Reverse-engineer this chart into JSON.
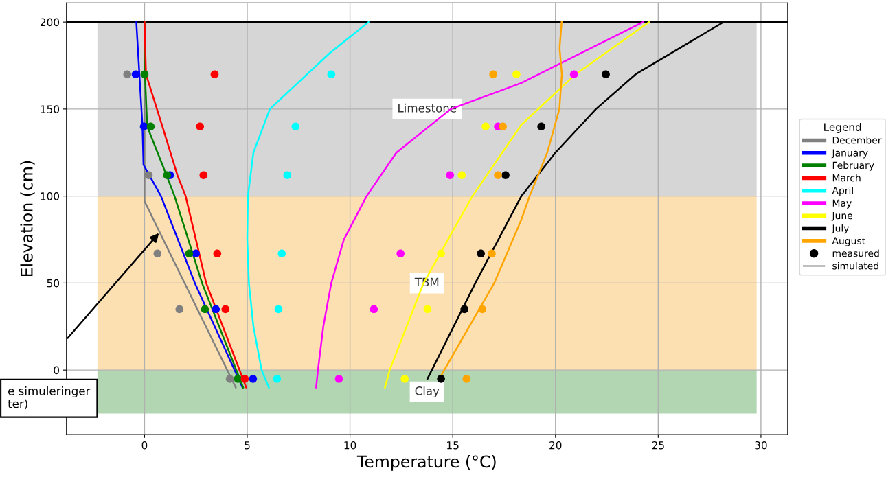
{
  "chart_data": {
    "type": "line",
    "xlabel": "Temperature (°C)",
    "ylabel": "Elevation (cm)",
    "legend_title": "Legend",
    "legend": "right",
    "grid": true,
    "xlim": [
      -3.8,
      31.3
    ],
    "ylim": [
      -37,
      211
    ],
    "xticks": [
      0,
      5,
      10,
      15,
      20,
      25,
      30
    ],
    "yticks": [
      0,
      50,
      100,
      150,
      200
    ],
    "bands": [
      {
        "axis": "y",
        "from": 100,
        "to": 200,
        "label": "Limestone",
        "color": "#d6d6d6"
      },
      {
        "axis": "y",
        "from": 0,
        "to": 100,
        "label": "TBM",
        "color": "#fde0b2"
      },
      {
        "axis": "y",
        "from": -25,
        "to": 0,
        "label": "Clay",
        "color": "#b1d6b1"
      }
    ],
    "ref_lines": [
      {
        "axis": "y",
        "value": 200,
        "color": "#000000"
      }
    ],
    "annotations": [
      "e simuleringer\nter)"
    ],
    "series": [
      {
        "name": "December",
        "type": "line",
        "color": "#808080",
        "x": [
          4.44,
          0,
          0,
          0
        ],
        "values": [
          -10,
          97,
          116,
          200
        ]
      },
      {
        "name": "January",
        "type": "line",
        "color": "#0000ff",
        "x": [
          4.77,
          2.45,
          0.8,
          -0.05,
          -0.1,
          -0.4
        ],
        "values": [
          -10,
          50,
          100,
          118,
          140,
          200
        ]
      },
      {
        "name": "February",
        "type": "line",
        "color": "#008000",
        "x": [
          4.8,
          2.8,
          1.46,
          1.07,
          0.13,
          0.02,
          0
        ],
        "values": [
          -10,
          50,
          100,
          112,
          140,
          170,
          200
        ]
      },
      {
        "name": "March",
        "type": "line",
        "color": "#ff0000",
        "x": [
          4.95,
          3.0,
          2.0,
          1.6,
          0.87,
          0.07,
          0
        ],
        "values": [
          -10,
          50,
          100,
          112,
          140,
          170,
          200
        ]
      },
      {
        "name": "April",
        "type": "line",
        "color": "#00ffff",
        "x": [
          6.05,
          5.7,
          5.3,
          5.08,
          5.0,
          5.03,
          5.3,
          6.1,
          7.0,
          9.0,
          10.9
        ],
        "values": [
          -10,
          0,
          25,
          50,
          75,
          100,
          125,
          150,
          160,
          182,
          200
        ]
      },
      {
        "name": "May",
        "type": "line",
        "color": "#ff00ff",
        "x": [
          8.35,
          8.44,
          8.7,
          9.09,
          9.7,
          10.81,
          12.26,
          14.9,
          18.34,
          24.26
        ],
        "values": [
          -10,
          0,
          25,
          50,
          75,
          100,
          125,
          150,
          165,
          200
        ]
      },
      {
        "name": "June",
        "type": "line",
        "color": "#ffff00",
        "x": [
          11.7,
          11.93,
          13.58,
          15.96,
          18.34,
          20.98,
          24.55
        ],
        "values": [
          -10,
          0,
          50,
          100,
          141,
          170,
          200
        ]
      },
      {
        "name": "July",
        "type": "line",
        "color": "#000000",
        "x": [
          13.77,
          16.1,
          18.34,
          20.0,
          21.97,
          23.9,
          28.18
        ],
        "values": [
          -5,
          50,
          100,
          125,
          150,
          170,
          200
        ]
      },
      {
        "name": "August",
        "type": "line",
        "color": "#ffa500",
        "x": [
          14.44,
          17.02,
          18.34,
          18.74,
          19.6,
          20.19,
          20.31,
          20.2,
          20.3
        ],
        "values": [
          -3,
          50,
          86.5,
          100,
          125,
          150,
          170,
          185,
          200
        ]
      },
      {
        "type": "scatter",
        "color": "#808080",
        "x": [
          -0.84,
          null,
          0.2,
          0.63,
          1.7,
          4.15
        ],
        "values": [
          170,
          null,
          112,
          67,
          35,
          -5
        ]
      },
      {
        "type": "scatter",
        "color": "#0000ff",
        "x": [
          -0.43,
          -0.03,
          1.24,
          2.5,
          3.47,
          5.28
        ],
        "values": [
          170,
          140,
          112,
          67,
          35,
          -5
        ]
      },
      {
        "type": "scatter",
        "color": "#008000",
        "x": [
          0,
          0.3,
          1.1,
          2.17,
          2.94,
          4.54
        ],
        "values": [
          170,
          140,
          112,
          67,
          35,
          -5
        ]
      },
      {
        "type": "scatter",
        "color": "#ff0000",
        "x": [
          3.41,
          2.7,
          2.87,
          3.54,
          3.94,
          4.88
        ],
        "values": [
          170,
          140,
          112,
          67,
          35,
          -5
        ]
      },
      {
        "type": "scatter",
        "color": "#00ffff",
        "x": [
          9.09,
          7.35,
          6.95,
          6.68,
          6.52,
          6.45
        ],
        "values": [
          170,
          140,
          112,
          67,
          35,
          -5
        ]
      },
      {
        "type": "scatter",
        "color": "#ff00ff",
        "x": [
          20.9,
          17.2,
          14.87,
          12.46,
          11.16,
          9.46
        ],
        "values": [
          170,
          140,
          112,
          67,
          35,
          -5
        ]
      },
      {
        "type": "scatter",
        "color": "#ffff00",
        "x": [
          18.1,
          16.6,
          15.44,
          14.43,
          13.77,
          12.66
        ],
        "values": [
          170,
          140,
          112,
          67,
          35,
          -5
        ]
      },
      {
        "type": "scatter",
        "color": "#000000",
        "x": [
          22.45,
          19.31,
          17.57,
          16.37,
          15.57,
          14.43
        ],
        "values": [
          170,
          140,
          112,
          67,
          35,
          -5
        ]
      },
      {
        "type": "scatter",
        "color": "#ffa500",
        "x": [
          16.97,
          17.44,
          17.2,
          16.9,
          16.44,
          15.67
        ],
        "values": [
          170,
          140,
          112,
          67,
          35,
          -5
        ]
      },
      {
        "name": "measured",
        "type": "scatter",
        "color": "#000000"
      },
      {
        "name": "simulated",
        "color": "#000000"
      }
    ]
  }
}
